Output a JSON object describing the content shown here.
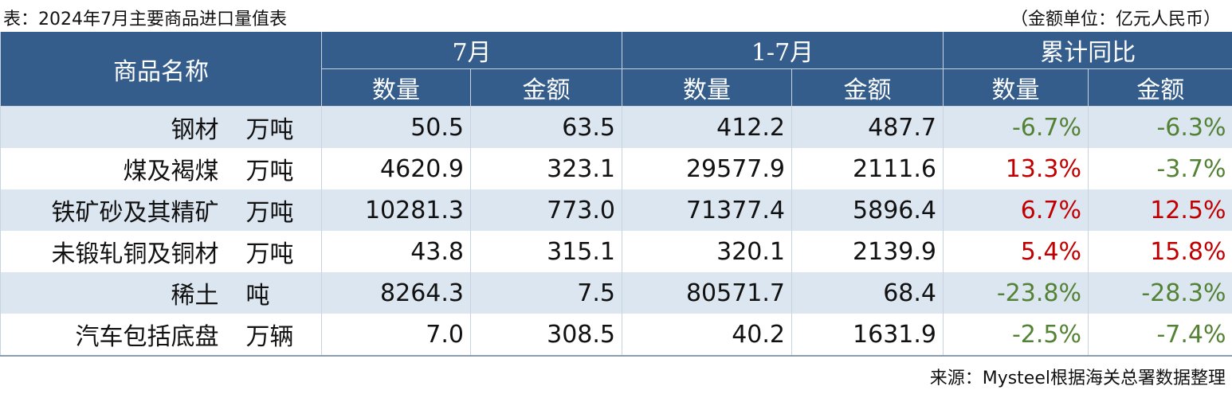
{
  "title": "表：2024年7月主要商品进口量值表",
  "unit_note": "（金额单位：亿元人民币）",
  "table": {
    "name_header": "商品名称",
    "groups": [
      "7月",
      "1-7月",
      "累计同比"
    ],
    "subheaders": [
      "数量",
      "金额",
      "数量",
      "金额",
      "数量",
      "金额"
    ],
    "rows": [
      [
        "钢材",
        "万吨",
        "50.5",
        "63.5",
        "412.2",
        "487.7",
        "-6.7%",
        "-6.3%"
      ],
      [
        "煤及褐煤",
        "万吨",
        "4620.9",
        "323.1",
        "29577.9",
        "2111.6",
        "13.3%",
        "-3.7%"
      ],
      [
        "铁矿砂及其精矿",
        "万吨",
        "10281.3",
        "773.0",
        "71377.4",
        "5896.4",
        "6.7%",
        "12.5%"
      ],
      [
        "未锻轧铜及铜材",
        "万吨",
        "43.8",
        "315.1",
        "320.1",
        "2139.9",
        "5.4%",
        "15.8%"
      ],
      [
        "稀土",
        "吨",
        "8264.3",
        "7.5",
        "80571.7",
        "68.4",
        "-23.8%",
        "-28.3%"
      ],
      [
        "汽车包括底盘",
        "万辆",
        "7.0",
        "308.5",
        "40.2",
        "1631.9",
        "-2.5%",
        "-7.4%"
      ]
    ]
  },
  "source": "来源：Mysteel根据海关总署数据整理"
}
